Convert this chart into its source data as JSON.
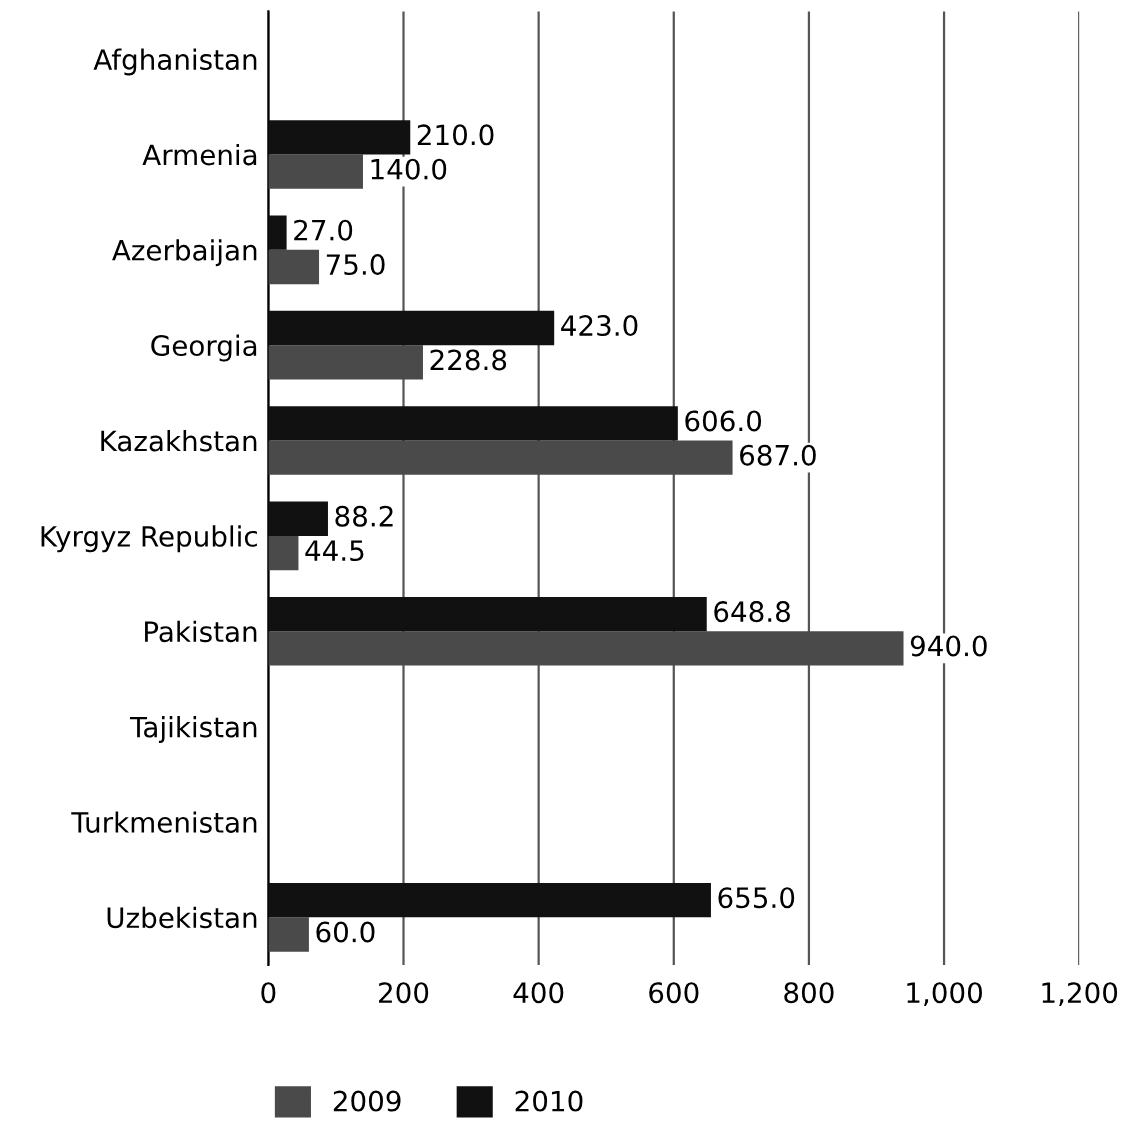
{
  "chart_data": {
    "type": "bar",
    "orientation": "horizontal",
    "categories": [
      "Afghanistan",
      "Armenia",
      "Azerbaijan",
      "Georgia",
      "Kazakhstan",
      "Kyrgyz Republic",
      "Pakistan",
      "Tajikistan",
      "Turkmenistan",
      "Uzbekistan"
    ],
    "series": [
      {
        "name": "2009",
        "color": "#4a4a4a",
        "values": [
          null,
          140.0,
          75.0,
          228.8,
          687.0,
          44.5,
          940.0,
          null,
          null,
          60.0
        ],
        "value_labels": [
          null,
          "140.0",
          "75.0",
          "228.8",
          "687.0",
          "44.5",
          "940.0",
          null,
          null,
          "60.0"
        ]
      },
      {
        "name": "2010",
        "color": "#111111",
        "values": [
          null,
          210.0,
          27.0,
          423.0,
          606.0,
          88.2,
          648.8,
          null,
          null,
          655.0
        ],
        "value_labels": [
          null,
          "210.0",
          "27.0",
          "423.0",
          "606.0",
          "88.2",
          "648.8",
          null,
          null,
          "655.0"
        ]
      }
    ],
    "xlim": [
      0,
      1200
    ],
    "xticks": [
      0,
      200,
      400,
      600,
      800,
      {
        "value": 1000,
        "label": "1,000"
      },
      {
        "value": 1200,
        "label": "1,200"
      }
    ],
    "grid": "x",
    "legend": "bottom left"
  }
}
